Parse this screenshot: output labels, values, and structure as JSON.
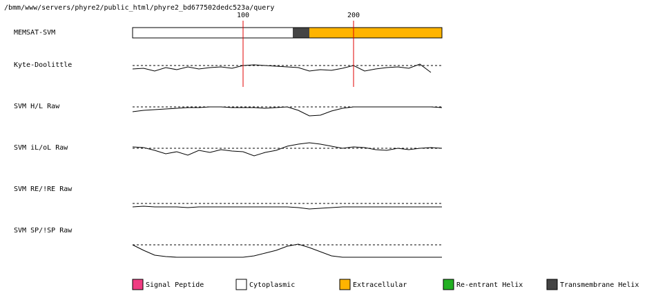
{
  "chart_data": {
    "type": "track",
    "title": "/bmm/www/servers/phyre2/public_html/phyre2_bd677502dedc523a/query",
    "xlim": [
      0,
      280
    ],
    "xticks": [
      100,
      200
    ],
    "ylim": [
      -20,
      20
    ],
    "bar_name": "MEMSAT-SVM",
    "segments": [
      {
        "start": 0,
        "end": 145,
        "color": "#ffffff"
      },
      {
        "start": 145,
        "end": 160,
        "color": "#444444"
      },
      {
        "start": 160,
        "end": 280,
        "color": "#ffb400"
      }
    ],
    "x": [
      0,
      10,
      20,
      30,
      40,
      50,
      60,
      70,
      80,
      90,
      100,
      110,
      120,
      130,
      140,
      150,
      160,
      170,
      180,
      190,
      200,
      210,
      220,
      230,
      240,
      250,
      260,
      270,
      280
    ],
    "series": [
      {
        "name": "Kyte-Doolittle",
        "color": "#000000",
        "values": [
          -5,
          -4,
          -8,
          -3,
          -6,
          -2,
          -5,
          -3,
          -2,
          -4,
          0,
          1,
          0,
          -1,
          -2,
          -3,
          -8,
          -6,
          -7,
          -4,
          0,
          -8,
          -5,
          -3,
          -2,
          -4,
          2,
          -10,
          null
        ]
      },
      {
        "name": "SVM H/L Raw",
        "color": "#000000",
        "values": [
          -7,
          -5,
          -4,
          -3,
          -2,
          -1,
          -1,
          0,
          0,
          -1,
          -1,
          -1,
          -2,
          -1,
          0,
          -5,
          -13,
          -12,
          -6,
          -2,
          0,
          0,
          0,
          0,
          0,
          0,
          0,
          0,
          -1
        ]
      },
      {
        "name": "SVM iL/oL Raw",
        "color": "#000000",
        "values": [
          2,
          1,
          -3,
          -8,
          -5,
          -10,
          -3,
          -6,
          -2,
          -4,
          -5,
          -11,
          -6,
          -3,
          3,
          6,
          8,
          6,
          3,
          0,
          2,
          1,
          -2,
          -3,
          0,
          -2,
          0,
          1,
          0
        ]
      },
      {
        "name": "SVM RE/!RE Raw",
        "color": "#000000",
        "values": [
          -5,
          -4,
          -5,
          -5,
          -5,
          -6,
          -5,
          -5,
          -5,
          -5,
          -5,
          -5,
          -5,
          -5,
          -5,
          -6,
          -8,
          -7,
          -6,
          -5,
          -5,
          -5,
          -5,
          -5,
          -5,
          -5,
          -5,
          -5,
          -5
        ]
      },
      {
        "name": "SVM SP/!SP Raw",
        "color": "#000000",
        "values": [
          0,
          -8,
          -15,
          -17,
          -18,
          -18,
          -18,
          -18,
          -18,
          -18,
          -18,
          -16,
          -12,
          -8,
          -2,
          1,
          -4,
          -10,
          -16,
          -18,
          -18,
          -18,
          -18,
          -18,
          -18,
          -18,
          -18,
          -18,
          -18
        ]
      }
    ],
    "legend": [
      {
        "name": "Signal Peptide",
        "color": "#f03c82"
      },
      {
        "name": "Cytoplasmic",
        "color": "#ffffff"
      },
      {
        "name": "Extracellular",
        "color": "#ffb400"
      },
      {
        "name": "Re-entrant Helix",
        "color": "#22b022"
      },
      {
        "name": "Transmembrane Helix",
        "color": "#444444"
      }
    ]
  }
}
